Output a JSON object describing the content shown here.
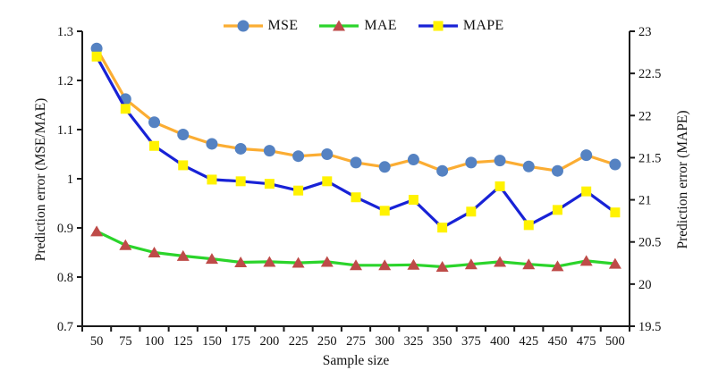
{
  "chart_data": {
    "type": "line",
    "title": "",
    "xlabel": "Sample size",
    "ylabel_left": "Prediction error (MSE/MAE)",
    "ylabel_right": "Prediction error (MAPE)",
    "grid": false,
    "legend_position": "top-center",
    "x_categories": [
      50,
      75,
      100,
      125,
      150,
      175,
      200,
      225,
      250,
      275,
      300,
      325,
      350,
      375,
      400,
      425,
      450,
      475,
      500
    ],
    "left_axis": {
      "min": 0.7,
      "max": 1.3,
      "ticks": [
        0.7,
        0.8,
        0.9,
        1,
        1.1,
        1.2,
        1.3
      ],
      "tick_labels": [
        "0.7",
        "0.8",
        "0.9",
        "1",
        "1.1",
        "1.2",
        "1.3"
      ]
    },
    "right_axis": {
      "min": 19.5,
      "max": 23,
      "ticks": [
        19.5,
        20,
        20.5,
        21,
        21.5,
        22,
        22.5,
        23
      ],
      "tick_labels": [
        "19.5",
        "20",
        "20.5",
        "21",
        "21.5",
        "22",
        "22.5",
        "23"
      ]
    },
    "axis_color": "#1a1a1a",
    "series": [
      {
        "name": "MSE",
        "axis": "left",
        "marker": "circle",
        "line_color": "#FBAD33",
        "marker_color": "#5582C2",
        "values": [
          1.265,
          1.162,
          1.115,
          1.09,
          1.071,
          1.061,
          1.057,
          1.046,
          1.05,
          1.033,
          1.024,
          1.039,
          1.016,
          1.033,
          1.037,
          1.025,
          1.016,
          1.048,
          1.029
        ]
      },
      {
        "name": "MAE",
        "axis": "left",
        "marker": "triangle",
        "line_color": "#2BD42B",
        "marker_color": "#BE4B48",
        "values": [
          0.893,
          0.865,
          0.85,
          0.843,
          0.837,
          0.83,
          0.831,
          0.829,
          0.831,
          0.824,
          0.824,
          0.825,
          0.821,
          0.826,
          0.831,
          0.826,
          0.822,
          0.833,
          0.827
        ]
      },
      {
        "name": "MAPE",
        "axis": "right",
        "marker": "square",
        "line_color": "#1822D6",
        "marker_color": "#FFF200",
        "values": [
          22.7,
          22.08,
          21.64,
          21.41,
          21.24,
          21.22,
          21.19,
          21.11,
          21.22,
          21.03,
          20.87,
          21.0,
          20.67,
          20.86,
          21.16,
          20.7,
          20.88,
          21.1,
          20.85
        ]
      }
    ]
  }
}
